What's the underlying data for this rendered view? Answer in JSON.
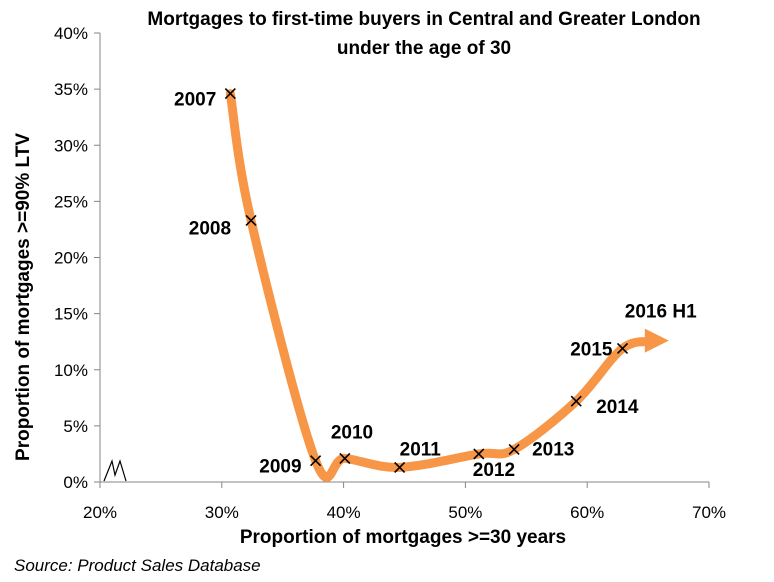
{
  "chart_data": {
    "type": "scatter",
    "title_lines": [
      "Mortgages to first-time buyers in Central and Greater London",
      "under the age of 30"
    ],
    "xlabel": "Proportion of mortgages >=30 years",
    "ylabel": "Proportion of mortgages >=90% LTV",
    "xlim": [
      20,
      70
    ],
    "ylim": [
      0,
      40
    ],
    "x_ticks": [
      20,
      30,
      40,
      50,
      60,
      70
    ],
    "x_tick_labels": [
      "20%",
      "30%",
      "40%",
      "50%",
      "60%",
      "70%"
    ],
    "y_ticks": [
      0,
      5,
      10,
      15,
      20,
      25,
      30,
      35,
      40
    ],
    "y_tick_labels": [
      "0%",
      "5%",
      "10%",
      "15%",
      "20%",
      "25%",
      "30%",
      "35%",
      "40%"
    ],
    "axis_break": "x",
    "grid": false,
    "line_color": "#F79646",
    "marker": "x",
    "points": [
      {
        "label": "2007",
        "x": 30.7,
        "y": 34.6
      },
      {
        "label": "2008",
        "x": 32.4,
        "y": 23.3
      },
      {
        "label": "2009",
        "x": 37.7,
        "y": 1.9
      },
      {
        "label": "2010",
        "x": 40.1,
        "y": 2.1
      },
      {
        "label": "2011",
        "x": 44.6,
        "y": 1.3
      },
      {
        "label": "2012",
        "x": 51.1,
        "y": 2.5
      },
      {
        "label": "2013",
        "x": 54.0,
        "y": 2.9
      },
      {
        "label": "2014",
        "x": 59.1,
        "y": 7.2
      },
      {
        "label": "2015",
        "x": 62.9,
        "y": 11.9
      }
    ],
    "arrow_label": "2016 H1",
    "arrow_end": {
      "x": 66.7,
      "y": 12.6
    }
  },
  "source": "Source: Product Sales Database"
}
